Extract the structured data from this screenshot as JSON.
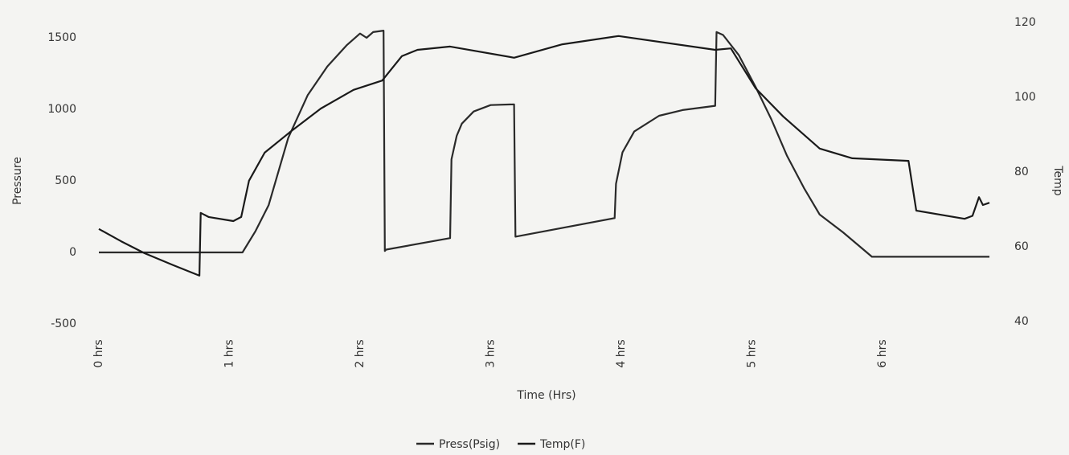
{
  "chart_data": {
    "type": "line",
    "x_label": "Time (Hrs)",
    "y_label": "Pressure",
    "y2_label": "Temp",
    "xlim": [
      0,
      6.9
    ],
    "xticks": [
      {
        "value": 0,
        "label": "0 hrs"
      },
      {
        "value": 1,
        "label": "1 hrs"
      },
      {
        "value": 2,
        "label": "2 hrs"
      },
      {
        "value": 3,
        "label": "3 hrs"
      },
      {
        "value": 4,
        "label": "4 hrs"
      },
      {
        "value": 5,
        "label": "5 hrs"
      },
      {
        "value": 6,
        "label": "6 hrs"
      }
    ],
    "ylim": [
      -528,
      1562
    ],
    "yticks": [
      -500,
      0,
      500,
      1000,
      1500
    ],
    "y2lim": [
      40,
      120
    ],
    "y2ticks": [
      40,
      60,
      80,
      100,
      120
    ],
    "grid": false,
    "legend": "bottom",
    "series": [
      {
        "name": "Press(Psig)",
        "color": "#2a2a2a",
        "x": [
          0,
          1.1,
          1.2,
          1.3,
          1.45,
          1.6,
          1.75,
          1.9,
          2.0,
          2.05,
          2.1,
          2.18,
          2.19,
          2.2,
          2.69,
          2.7,
          2.74,
          2.78,
          2.87,
          3.0,
          3.18,
          3.19,
          3.95,
          3.96,
          4.01,
          4.1,
          4.29,
          4.47,
          4.72,
          4.73,
          4.78,
          4.9,
          5.03,
          5.15,
          5.27,
          5.4,
          5.52,
          5.7,
          5.92,
          6.82
        ],
        "values": [
          0,
          0,
          150,
          330,
          800,
          1100,
          1300,
          1450,
          1530,
          1500,
          1540,
          1550,
          10,
          20,
          100,
          650,
          815,
          900,
          985,
          1030,
          1035,
          110,
          240,
          480,
          700,
          845,
          955,
          995,
          1025,
          1540,
          1520,
          1380,
          1155,
          930,
          675,
          450,
          265,
          140,
          -30,
          -30
        ]
      },
      {
        "name": "Temp(F)",
        "color": "#1a1a1a",
        "axis": "y2",
        "x": [
          0,
          0.17,
          0.35,
          0.57,
          0.77,
          0.78,
          0.84,
          1.03,
          1.09,
          1.15,
          1.27,
          1.46,
          1.7,
          1.95,
          2.17,
          2.32,
          2.44,
          2.69,
          3.18,
          3.55,
          3.98,
          4.72,
          4.84,
          5.03,
          5.24,
          5.52,
          5.77,
          6.2,
          6.26,
          6.63,
          6.69,
          6.74,
          6.77,
          6.82
        ],
        "values": [
          66.5,
          63.2,
          60,
          56.8,
          54,
          70.8,
          69.7,
          68.6,
          69.7,
          79.4,
          86.9,
          92.3,
          98.7,
          103.7,
          106.2,
          112.7,
          114.4,
          115.3,
          112.3,
          115.9,
          118.1,
          114.4,
          114.8,
          104.1,
          96.6,
          88,
          85.4,
          84.7,
          71.4,
          69.2,
          70,
          75,
          72.9,
          73.5
        ]
      }
    ]
  }
}
